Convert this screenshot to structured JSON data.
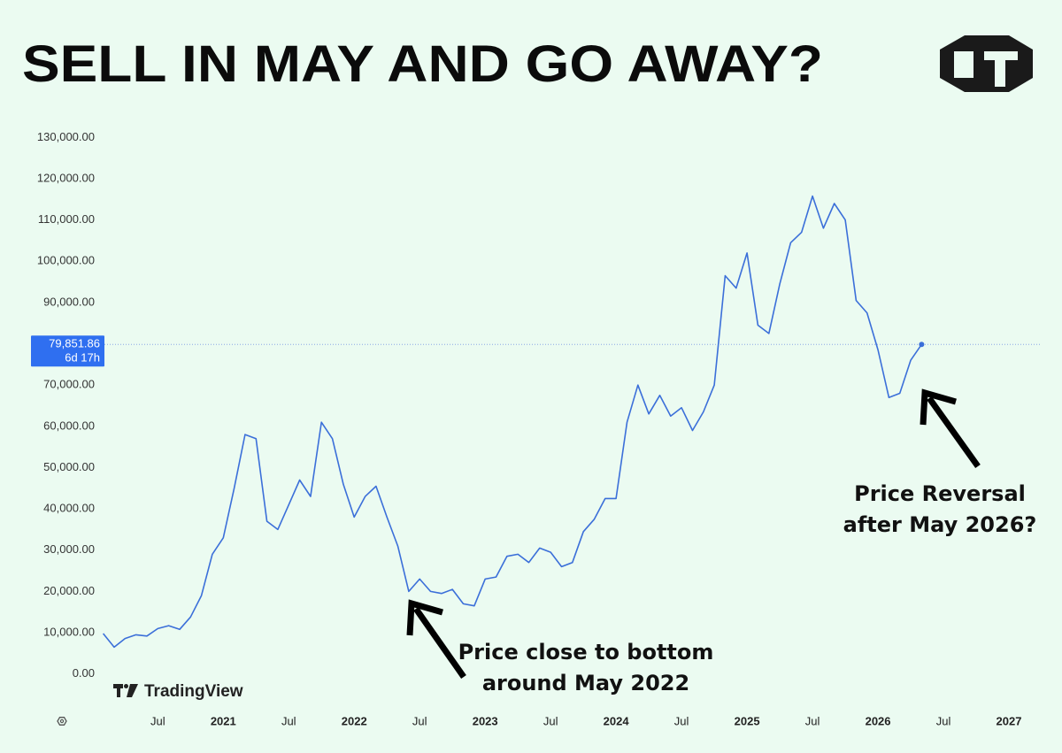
{
  "chart_data": {
    "type": "line",
    "title": "SELL IN MAY AND GO AWAY?",
    "watermark": "TradingView",
    "color": "#3b6fd9",
    "x": [
      "2020-02",
      "2020-03",
      "2020-04",
      "2020-05",
      "2020-06",
      "2020-07",
      "2020-08",
      "2020-09",
      "2020-10",
      "2020-11",
      "2020-12",
      "2021-01",
      "2021-02",
      "2021-03",
      "2021-04",
      "2021-05",
      "2021-06",
      "2021-07",
      "2021-08",
      "2021-09",
      "2021-10",
      "2021-11",
      "2021-12",
      "2022-01",
      "2022-02",
      "2022-03",
      "2022-04",
      "2022-05",
      "2022-06",
      "2022-07",
      "2022-08",
      "2022-09",
      "2022-10",
      "2022-11",
      "2022-12",
      "2023-01",
      "2023-02",
      "2023-03",
      "2023-04",
      "2023-05",
      "2023-06",
      "2023-07",
      "2023-08",
      "2023-09",
      "2023-10",
      "2023-11",
      "2023-12",
      "2024-01",
      "2024-02",
      "2024-03",
      "2024-04",
      "2024-05",
      "2024-06",
      "2024-07",
      "2024-08",
      "2024-09",
      "2024-10",
      "2024-11",
      "2024-12",
      "2025-01",
      "2025-02",
      "2025-03",
      "2025-04",
      "2025-05",
      "2025-06",
      "2025-07",
      "2025-08",
      "2025-09",
      "2025-10",
      "2025-11",
      "2025-12",
      "2026-01",
      "2026-02",
      "2026-03",
      "2026-04",
      "2026-05"
    ],
    "values": [
      9800,
      6500,
      8600,
      9500,
      9200,
      11000,
      11700,
      10800,
      13800,
      19000,
      29000,
      33000,
      45000,
      58000,
      57000,
      37000,
      35000,
      41000,
      47000,
      43000,
      61000,
      57000,
      46000,
      38000,
      43000,
      45500,
      38000,
      31000,
      20000,
      23000,
      20000,
      19500,
      20500,
      17000,
      16500,
      23000,
      23500,
      28500,
      29000,
      27000,
      30500,
      29500,
      26000,
      27000,
      34500,
      37500,
      42500,
      42500,
      61000,
      70000,
      63000,
      67500,
      62500,
      64500,
      59000,
      63500,
      70000,
      96500,
      93500,
      102000,
      84500,
      82500,
      94500,
      104500,
      107000,
      115800,
      108000,
      114000,
      110000,
      90500,
      87500,
      78500,
      67000,
      68000,
      76000,
      79851.86
    ],
    "xlim": [
      "2019-09",
      "2027-04"
    ],
    "xticks": [
      {
        "value": "2020-07",
        "label": "Jul"
      },
      {
        "value": "2021-01",
        "label": "2021"
      },
      {
        "value": "2021-07",
        "label": "Jul"
      },
      {
        "value": "2022-01",
        "label": "2022"
      },
      {
        "value": "2022-07",
        "label": "Jul"
      },
      {
        "value": "2023-01",
        "label": "2023"
      },
      {
        "value": "2023-07",
        "label": "Jul"
      },
      {
        "value": "2024-01",
        "label": "2024"
      },
      {
        "value": "2024-07",
        "label": "Jul"
      },
      {
        "value": "2025-01",
        "label": "2025"
      },
      {
        "value": "2025-07",
        "label": "Jul"
      },
      {
        "value": "2026-01",
        "label": "2026"
      },
      {
        "value": "2026-07",
        "label": "Jul"
      },
      {
        "value": "2027-01",
        "label": "2027"
      }
    ],
    "ylim": [
      -5000,
      135000
    ],
    "yticks": [
      {
        "value": 0,
        "label": "0.00"
      },
      {
        "value": 10000,
        "label": "10,000.00"
      },
      {
        "value": 20000,
        "label": "20,000.00"
      },
      {
        "value": 30000,
        "label": "30,000.00"
      },
      {
        "value": 40000,
        "label": "40,000.00"
      },
      {
        "value": 50000,
        "label": "50,000.00"
      },
      {
        "value": 60000,
        "label": "60,000.00"
      },
      {
        "value": 70000,
        "label": "70,000.00"
      },
      {
        "value": 90000,
        "label": "90,000.00"
      },
      {
        "value": 100000,
        "label": "100,000.00"
      },
      {
        "value": 110000,
        "label": "110,000.00"
      },
      {
        "value": 120000,
        "label": "120,000.00"
      },
      {
        "value": 130000,
        "label": "130,000.00"
      }
    ],
    "current_price": {
      "value": 79851.86,
      "label": "79,851.86",
      "countdown": "6d 17h"
    },
    "annotations": [
      {
        "text": [
          "Price close to bottom",
          "around May 2022"
        ]
      },
      {
        "text": [
          "Price Reversal",
          "after May 2026?"
        ]
      }
    ]
  }
}
